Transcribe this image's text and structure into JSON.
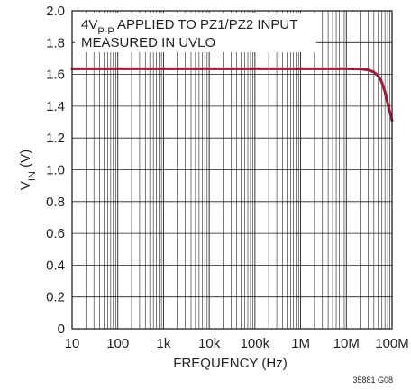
{
  "chart_data": {
    "type": "line",
    "title": "",
    "xlabel": "FREQUENCY (Hz)",
    "ylabel": {
      "main": "V",
      "sub": "IN",
      "unit": " (V)"
    },
    "x_scale": "log",
    "xlim": [
      10,
      100000000
    ],
    "ylim": [
      0,
      2.0
    ],
    "x_ticks": [
      {
        "value": 10,
        "label": "10"
      },
      {
        "value": 100,
        "label": "100"
      },
      {
        "value": 1000,
        "label": "1k"
      },
      {
        "value": 10000,
        "label": "10k"
      },
      {
        "value": 100000,
        "label": "100k"
      },
      {
        "value": 1000000,
        "label": "1M"
      },
      {
        "value": 10000000,
        "label": "10M"
      },
      {
        "value": 100000000,
        "label": "100M"
      }
    ],
    "y_ticks": [
      {
        "value": 0,
        "label": "0"
      },
      {
        "value": 0.2,
        "label": "0.2"
      },
      {
        "value": 0.4,
        "label": "0.4"
      },
      {
        "value": 0.6,
        "label": "0.6"
      },
      {
        "value": 0.8,
        "label": "0.8"
      },
      {
        "value": 1.0,
        "label": "1.0"
      },
      {
        "value": 1.2,
        "label": "1.2"
      },
      {
        "value": 1.4,
        "label": "1.4"
      },
      {
        "value": 1.6,
        "label": "1.6"
      },
      {
        "value": 1.8,
        "label": "1.8"
      },
      {
        "value": 2.0,
        "label": "2.0"
      }
    ],
    "grid": true,
    "series": [
      {
        "color": "#9b1b3c",
        "x": [
          10,
          100,
          1000,
          10000,
          100000,
          1000000,
          10000000,
          20000000,
          30000000,
          40000000,
          50000000,
          60000000,
          70000000,
          80000000,
          90000000,
          100000000
        ],
        "y": [
          1.635,
          1.635,
          1.635,
          1.635,
          1.635,
          1.635,
          1.635,
          1.634,
          1.628,
          1.615,
          1.59,
          1.55,
          1.49,
          1.42,
          1.36,
          1.31
        ]
      }
    ],
    "annotation": {
      "line1_pre": "4V",
      "line1_sub": "P-P",
      "line1_post": " APPLIED TO PZ1/PZ2 INPUT",
      "line2": "MEASURED IN UVLO"
    },
    "figure_id": "35881 G08"
  }
}
